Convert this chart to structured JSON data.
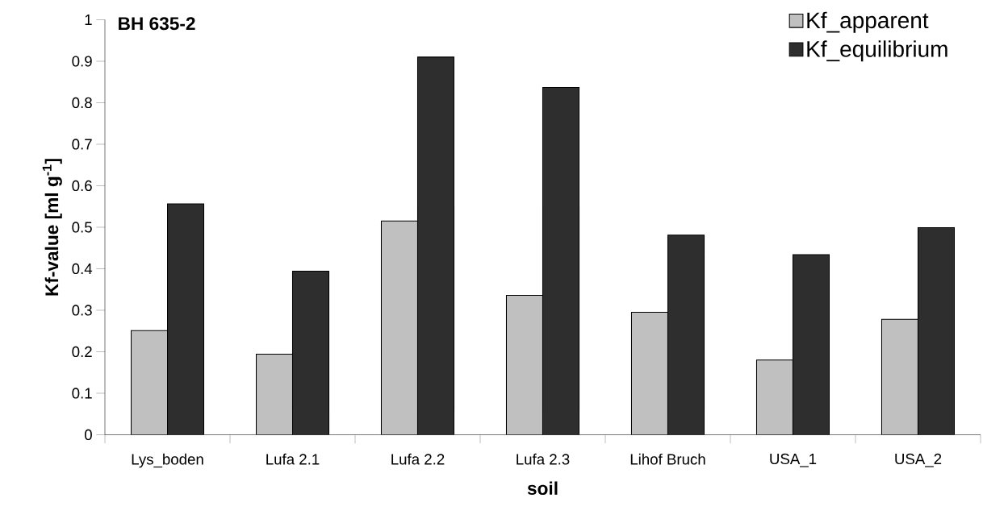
{
  "chart_data": {
    "type": "bar",
    "title": "BH 635-2",
    "xlabel": "soil",
    "ylabel": "Kf-value [ml g$^{-1}$]",
    "categories": [
      "Lys_boden",
      "Lufa 2.1",
      "Lufa 2.2",
      "Lufa 2.3",
      "Lihof Bruch",
      "USA_1",
      "USA_2"
    ],
    "series": [
      {
        "name": "Kf_apparent",
        "color": "#c0c0c0",
        "values": [
          0.251,
          0.194,
          0.515,
          0.336,
          0.295,
          0.18,
          0.278
        ]
      },
      {
        "name": "Kf_equilibrium",
        "color": "#2e2e2e",
        "values": [
          0.556,
          0.394,
          0.91,
          0.837,
          0.481,
          0.434,
          0.499
        ]
      }
    ],
    "ylim": [
      0,
      1
    ],
    "yticks": [
      0,
      0.1,
      0.2,
      0.3,
      0.4,
      0.5,
      0.6,
      0.7,
      0.8,
      0.9,
      1
    ],
    "legend": "top right"
  }
}
